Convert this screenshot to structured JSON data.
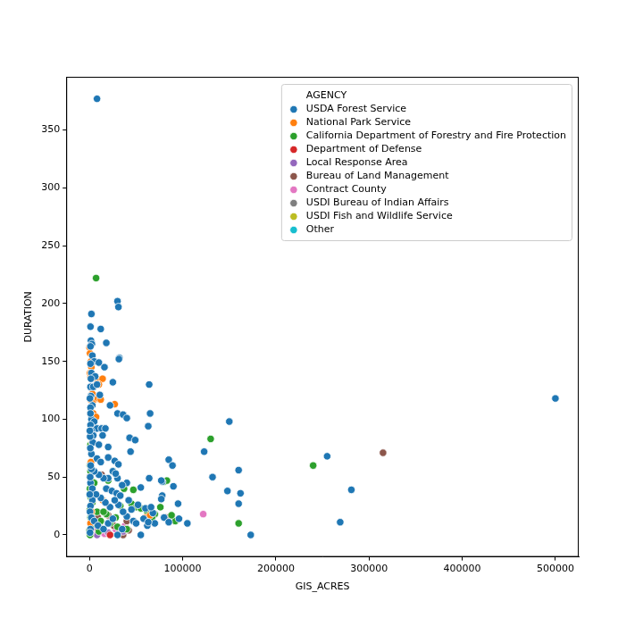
{
  "chart_data": {
    "type": "scatter",
    "x_label": "GIS_ACRES",
    "y_label": "DURATION",
    "legend_title": "AGENCY",
    "legend": "upper right",
    "grid": false,
    "marker": "circle",
    "xlim": [
      -25000,
      525000
    ],
    "xticks": [
      0,
      100000,
      200000,
      300000,
      400000,
      500000
    ],
    "ylim": [
      -19,
      396
    ],
    "yticks": [
      0,
      50,
      100,
      150,
      200,
      250,
      300,
      350
    ],
    "series": [
      {
        "name": "USDA Forest Service",
        "color": "#1f77b4",
        "x": [
          8000,
          2000,
          1000,
          1500,
          2500,
          1000,
          3000,
          12000,
          18000,
          30000,
          31000,
          32000,
          31500,
          64000,
          5000,
          1000,
          10000,
          16000,
          2000,
          6000,
          25000,
          1000,
          4000,
          8000,
          1500,
          11000,
          3000,
          1000,
          22000,
          30000,
          36000,
          40000,
          65000,
          63000,
          2000,
          5000,
          1000,
          8000,
          13000,
          17000,
          2000,
          4000,
          14000,
          3500,
          10000,
          20000,
          43000,
          49000,
          44000,
          27000,
          31000,
          20000,
          2000,
          8000,
          12000,
          150000,
          500000,
          123000,
          132000,
          255000,
          160000,
          85000,
          89000,
          78000,
          77000,
          281000,
          148000,
          160000,
          162000,
          269000,
          173000,
          105000,
          95000,
          90000,
          96000,
          78000,
          77000,
          64000,
          55000,
          40000,
          30000,
          35000,
          25000,
          28000,
          20000,
          15000,
          10000,
          5000,
          2000,
          1000,
          3000,
          18000,
          24000,
          29000,
          33000,
          42000,
          52000,
          60000,
          68000,
          70000,
          80000,
          85000,
          62000,
          55000,
          47000,
          40000,
          36000,
          31000,
          27000,
          22000,
          17000,
          12000,
          7000,
          3000,
          1000,
          500,
          2000,
          5000,
          9000,
          15000,
          20000,
          25000,
          30000,
          35000,
          45000,
          50000,
          58000,
          63000,
          66000,
          1000,
          500,
          1200,
          800,
          600,
          1000,
          1500,
          400,
          300,
          700,
          200
        ],
        "values": [
          377,
          191,
          180,
          168,
          165,
          163,
          155,
          178,
          166,
          202,
          197,
          153,
          152,
          130,
          150,
          148,
          149,
          145,
          140,
          137,
          132,
          128,
          128,
          130,
          120,
          121,
          112,
          110,
          112,
          105,
          104,
          101,
          105,
          94,
          100,
          98,
          95,
          92,
          92,
          92,
          90,
          86,
          86,
          80,
          78,
          76,
          84,
          82,
          72,
          64,
          61,
          67,
          70,
          66,
          63,
          98,
          118,
          72,
          50,
          68,
          56,
          65,
          60,
          46,
          47,
          39,
          38,
          27,
          36,
          11,
          0,
          10,
          27,
          42,
          14,
          34,
          31,
          49,
          41,
          45,
          49,
          43,
          55,
          53,
          49,
          49,
          52,
          55,
          57,
          45,
          40,
          40,
          38,
          36,
          34,
          30,
          26,
          23,
          19,
          10,
          15,
          11,
          8,
          0,
          12,
          16,
          20,
          26,
          30,
          24,
          28,
          32,
          35,
          30,
          25,
          20,
          15,
          12,
          8,
          5,
          10,
          14,
          0,
          5,
          22,
          10,
          14,
          11,
          24,
          5,
          2,
          60,
          75,
          85,
          105,
          135,
          118,
          90,
          50,
          35
        ]
      },
      {
        "name": "National Park Service",
        "color": "#ff7f0e",
        "x": [
          0,
          500,
          1500,
          2000,
          500,
          1000,
          4000,
          8000,
          14000,
          10000,
          3000,
          1000,
          5000,
          9000,
          12000,
          1000,
          4000,
          7000,
          2000,
          27000,
          3000,
          1500,
          500,
          14000,
          60000,
          65000,
          2000,
          1000
        ],
        "values": [
          162,
          157,
          150,
          145,
          140,
          136,
          128,
          135,
          135,
          130,
          122,
          117,
          117,
          118,
          117,
          105,
          105,
          102,
          93,
          113,
          80,
          63,
          50,
          30,
          15,
          17,
          20,
          10
        ]
      },
      {
        "name": "California Department of Forestry and Fire Protection",
        "color": "#2ca02c",
        "x": [
          7000,
          1000,
          500,
          1000,
          2000,
          500,
          1000,
          3000,
          500,
          1000,
          2000,
          0,
          500,
          5000,
          8000,
          12000,
          18000,
          22000,
          28000,
          33000,
          40000,
          45000,
          50000,
          55000,
          62000,
          70000,
          76000,
          80000,
          83000,
          92000,
          130000,
          240000,
          160000,
          67000,
          37000,
          47000,
          25000,
          20000,
          15000,
          88000,
          30000,
          10000
        ],
        "values": [
          222,
          78,
          60,
          55,
          47,
          40,
          33,
          28,
          22,
          15,
          8,
          4,
          0,
          45,
          20,
          12,
          18,
          10,
          15,
          25,
          5,
          27,
          24,
          23,
          20,
          18,
          24,
          46,
          47,
          12,
          83,
          60,
          10,
          15,
          40,
          39,
          55,
          47,
          20,
          17,
          7,
          3
        ]
      },
      {
        "name": "Department of Defense",
        "color": "#d62728",
        "x": [
          1000,
          14000,
          22000
        ],
        "values": [
          2,
          5,
          0
        ]
      },
      {
        "name": "Local Response Area",
        "color": "#9467bd",
        "x": [
          8000,
          20000,
          36000
        ],
        "values": [
          0,
          2,
          3
        ]
      },
      {
        "name": "Bureau of Land Management",
        "color": "#8c564b",
        "x": [
          315000,
          13000,
          9000,
          20000,
          26000,
          40000,
          42000,
          82000,
          36000
        ],
        "values": [
          71,
          52,
          15,
          17,
          8,
          12,
          4,
          15,
          0
        ]
      },
      {
        "name": "Contract County",
        "color": "#e377c2",
        "x": [
          122000,
          16000,
          20000,
          5000,
          28000,
          38000
        ],
        "values": [
          18,
          1,
          10,
          3,
          5,
          8
        ]
      },
      {
        "name": "USDI Bureau of Indian Affairs",
        "color": "#7f7f7f",
        "x": [
          14000,
          30000
        ],
        "values": [
          3,
          6
        ]
      },
      {
        "name": "USDI Fish and Wildlife Service",
        "color": "#bcbd22",
        "x": [
          2000
        ],
        "values": [
          1
        ]
      },
      {
        "name": "Other",
        "color": "#17becf",
        "x": [
          500
        ],
        "values": [
          1
        ]
      }
    ]
  }
}
